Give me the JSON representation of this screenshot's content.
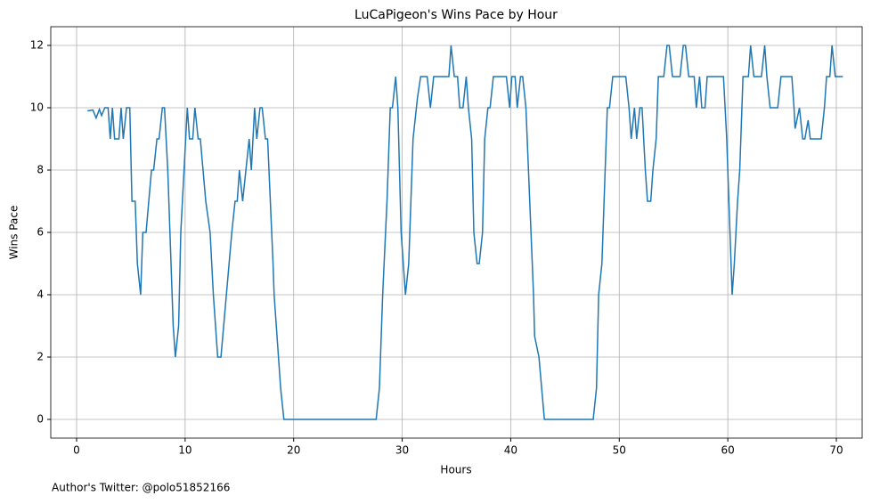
{
  "chart_data": {
    "type": "line",
    "title": "LuCaPigeon's Wins Pace by Hour",
    "x_label": "Hours",
    "y_label": "Wins Pace",
    "footnote": "Author's Twitter: @polo51852166",
    "x": [
      1.0,
      1.5,
      1.8,
      2.1,
      2.3,
      2.6,
      2.9,
      3.1,
      3.3,
      3.5,
      3.9,
      4.1,
      4.3,
      4.6,
      4.9,
      5.1,
      5.4,
      5.6,
      5.9,
      6.1,
      6.4,
      6.9,
      7.1,
      7.4,
      7.6,
      7.9,
      8.1,
      8.4,
      8.9,
      9.1,
      9.4,
      9.6,
      9.9,
      10.2,
      10.4,
      10.7,
      10.9,
      11.2,
      11.4,
      11.9,
      12.3,
      12.6,
      13.0,
      13.3,
      13.8,
      14.3,
      14.6,
      14.8,
      15.0,
      15.3,
      15.6,
      15.9,
      16.1,
      16.4,
      16.6,
      16.9,
      17.1,
      17.4,
      17.6,
      18.1,
      18.2,
      18.6,
      18.8,
      19.1,
      27.6,
      27.9,
      28.2,
      28.6,
      28.9,
      29.1,
      29.4,
      29.6,
      29.9,
      30.1,
      30.3,
      30.6,
      31.0,
      31.4,
      31.7,
      32.3,
      32.6,
      32.9,
      34.3,
      34.5,
      34.8,
      35.1,
      35.3,
      35.6,
      35.9,
      36.1,
      36.4,
      36.6,
      36.9,
      37.1,
      37.4,
      37.6,
      37.9,
      38.1,
      38.4,
      39.6,
      39.9,
      40.1,
      40.4,
      40.6,
      40.9,
      41.1,
      41.4,
      42.1,
      42.2,
      42.6,
      43.1,
      47.6,
      47.9,
      48.1,
      48.4,
      48.7,
      48.9,
      49.1,
      49.4,
      50.6,
      50.9,
      51.1,
      51.4,
      51.6,
      51.9,
      52.1,
      52.4,
      52.6,
      52.9,
      53.1,
      53.4,
      53.6,
      54.1,
      54.4,
      54.6,
      54.9,
      55.6,
      55.9,
      56.1,
      56.4,
      56.9,
      57.1,
      57.4,
      57.6,
      57.9,
      58.1,
      59.6,
      59.9,
      60.1,
      60.4,
      60.6,
      60.9,
      61.1,
      61.4,
      61.9,
      62.1,
      62.4,
      63.1,
      63.4,
      63.6,
      63.9,
      64.6,
      64.9,
      65.9,
      66.1,
      66.2,
      66.6,
      66.9,
      67.1,
      67.4,
      67.6,
      68.6,
      68.9,
      69.1,
      69.4,
      69.6,
      69.9,
      70.6
    ],
    "series": [
      {
        "name": "Wins Pace",
        "color": "#1f77b4",
        "values": [
          9.9,
          9.93,
          9.67,
          9.95,
          9.75,
          10,
          10,
          9,
          10,
          9,
          9,
          10,
          9,
          10,
          10,
          7,
          7,
          5,
          4,
          6,
          6,
          8,
          8,
          9,
          9,
          10,
          10,
          8,
          3,
          2,
          3,
          6,
          8,
          10,
          9,
          9,
          10,
          9,
          9,
          7,
          6,
          4,
          2,
          2,
          4,
          6,
          7,
          7,
          8,
          7,
          8,
          9,
          8,
          10,
          9,
          10,
          10,
          9,
          9,
          5,
          4,
          2,
          1,
          0,
          0,
          1,
          4,
          7,
          10,
          10,
          11,
          10,
          6,
          5,
          4,
          5,
          9,
          10.3,
          11,
          11,
          10,
          11,
          11,
          12,
          11,
          11,
          10,
          10,
          11,
          10,
          9,
          6,
          5,
          5,
          6,
          9,
          10,
          10,
          11,
          11,
          10,
          11,
          11,
          10,
          11,
          11,
          10,
          4,
          2.67,
          2,
          0,
          0,
          1,
          4,
          5,
          8,
          10,
          10,
          11,
          11,
          10,
          9,
          10,
          9,
          10,
          10,
          8,
          7,
          7,
          8,
          9,
          11,
          11,
          12,
          12,
          11,
          11,
          12,
          12,
          11,
          11,
          10,
          11,
          10,
          10,
          11,
          11,
          9,
          7,
          4,
          5,
          7,
          8,
          11,
          11,
          12,
          11,
          11,
          12,
          11,
          10,
          10,
          11,
          11,
          10,
          9.33,
          10,
          9,
          9,
          9.6,
          9,
          9,
          10,
          11,
          11,
          12,
          11,
          11
        ]
      }
    ],
    "xlim": [
      -2.38,
      72.38
    ],
    "ylim": [
      -0.6,
      12.6
    ],
    "xticks": [
      0,
      10,
      20,
      30,
      40,
      50,
      60,
      70
    ],
    "yticks": [
      0,
      2,
      4,
      6,
      8,
      10,
      12
    ],
    "grid": true
  }
}
